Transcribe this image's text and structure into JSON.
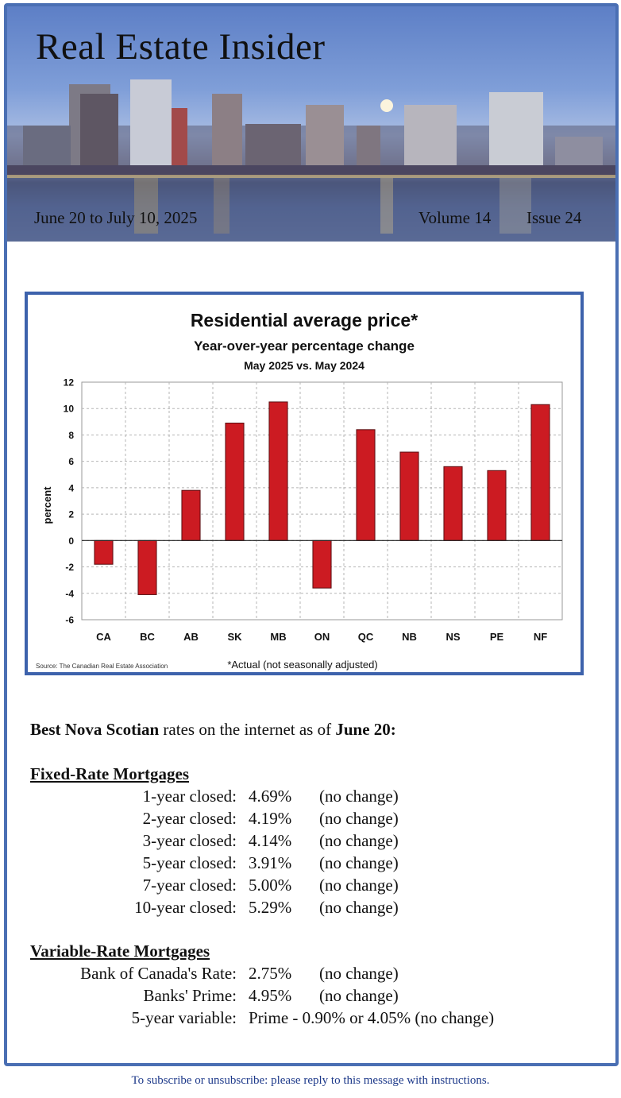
{
  "header": {
    "title": "Real Estate Insider",
    "date_range": "June 20 to July 10, 2025",
    "volume": "Volume 14",
    "issue": "Issue 24"
  },
  "chart_data": {
    "type": "bar",
    "title": "Residential average price*",
    "subtitle": "Year-over-year percentage change",
    "subtitle2": "May 2025 vs. May 2024",
    "ylabel": "percent",
    "xlabel": "",
    "ylim": [
      -6,
      12
    ],
    "yticks": [
      -6,
      -4,
      -2,
      0,
      2,
      4,
      6,
      8,
      10,
      12
    ],
    "categories": [
      "CA",
      "BC",
      "AB",
      "SK",
      "MB",
      "ON",
      "QC",
      "NB",
      "NS",
      "PE",
      "NF"
    ],
    "values": [
      -1.8,
      -4.1,
      3.8,
      8.9,
      10.5,
      -3.6,
      8.4,
      6.7,
      5.6,
      5.3,
      10.3
    ],
    "bar_color": "#cc1b22",
    "grid": true,
    "source": "Source: The Canadian Real Estate Association",
    "footnote": "*Actual (not seasonally adjusted)"
  },
  "rates": {
    "intro_bold1": "Best Nova Scotian",
    "intro_text": " rates on the internet as of ",
    "intro_bold2": "June 20:",
    "fixed_heading": "Fixed-Rate Mortgages",
    "fixed": [
      {
        "label": "1-year closed:",
        "rate": "4.69%",
        "change": "(no change)"
      },
      {
        "label": "2-year closed:",
        "rate": "4.19%",
        "change": "(no change)"
      },
      {
        "label": "3-year closed:",
        "rate": "4.14%",
        "change": "(no change)"
      },
      {
        "label": "5-year closed:",
        "rate": "3.91%",
        "change": "(no change)"
      },
      {
        "label": "7-year closed:",
        "rate": "5.00%",
        "change": "(no change)"
      },
      {
        "label": "10-year closed:",
        "rate": "5.29%",
        "change": "(no change)"
      }
    ],
    "variable_heading": "Variable-Rate Mortgages",
    "variable": [
      {
        "label": "Bank of Canada's Rate:",
        "rate": "2.75%",
        "change": "(no change)"
      },
      {
        "label": "Banks' Prime:",
        "rate": "4.95%",
        "change": "(no change)"
      },
      {
        "label": "5-year variable:",
        "rate": "Prime - 0.90% or 4.05% (no change)",
        "change": ""
      }
    ]
  },
  "footer": {
    "text": "To subscribe or unsubscribe: please reply to this message with instructions."
  }
}
